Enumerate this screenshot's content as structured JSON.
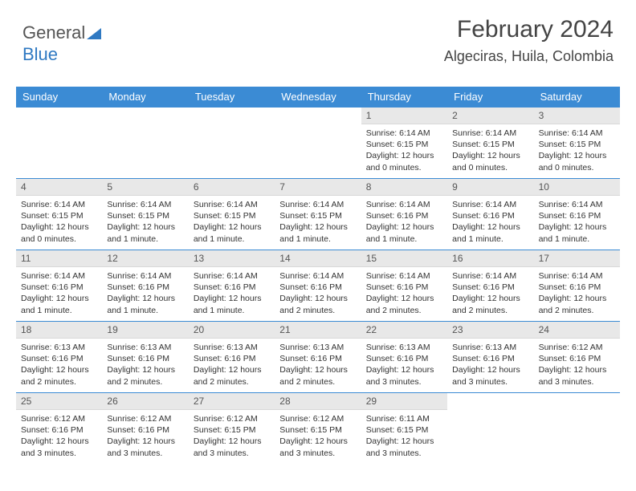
{
  "logo": {
    "part1": "General",
    "part2": "Blue"
  },
  "header": {
    "title": "February 2024",
    "location": "Algeciras, Huila, Colombia"
  },
  "colors": {
    "header_bg": "#3b8bd4",
    "header_text": "#ffffff",
    "daynum_bg": "#e8e8e8",
    "rule": "#3b8bd4",
    "text": "#333333",
    "logo_gray": "#555555",
    "logo_blue": "#2f79c2",
    "page_bg": "#ffffff"
  },
  "typography": {
    "title_fontsize": 30,
    "location_fontsize": 18,
    "dow_fontsize": 13,
    "daynum_fontsize": 12,
    "detail_fontsize": 10.5
  },
  "days_of_week": [
    "Sunday",
    "Monday",
    "Tuesday",
    "Wednesday",
    "Thursday",
    "Friday",
    "Saturday"
  ],
  "labels": {
    "sunrise": "Sunrise:",
    "sunset": "Sunset:",
    "daylight": "Daylight:"
  },
  "weeks": [
    [
      null,
      null,
      null,
      null,
      {
        "n": "1",
        "sr": "6:14 AM",
        "ss": "6:15 PM",
        "dl": "12 hours and 0 minutes."
      },
      {
        "n": "2",
        "sr": "6:14 AM",
        "ss": "6:15 PM",
        "dl": "12 hours and 0 minutes."
      },
      {
        "n": "3",
        "sr": "6:14 AM",
        "ss": "6:15 PM",
        "dl": "12 hours and 0 minutes."
      }
    ],
    [
      {
        "n": "4",
        "sr": "6:14 AM",
        "ss": "6:15 PM",
        "dl": "12 hours and 0 minutes."
      },
      {
        "n": "5",
        "sr": "6:14 AM",
        "ss": "6:15 PM",
        "dl": "12 hours and 1 minute."
      },
      {
        "n": "6",
        "sr": "6:14 AM",
        "ss": "6:15 PM",
        "dl": "12 hours and 1 minute."
      },
      {
        "n": "7",
        "sr": "6:14 AM",
        "ss": "6:15 PM",
        "dl": "12 hours and 1 minute."
      },
      {
        "n": "8",
        "sr": "6:14 AM",
        "ss": "6:16 PM",
        "dl": "12 hours and 1 minute."
      },
      {
        "n": "9",
        "sr": "6:14 AM",
        "ss": "6:16 PM",
        "dl": "12 hours and 1 minute."
      },
      {
        "n": "10",
        "sr": "6:14 AM",
        "ss": "6:16 PM",
        "dl": "12 hours and 1 minute."
      }
    ],
    [
      {
        "n": "11",
        "sr": "6:14 AM",
        "ss": "6:16 PM",
        "dl": "12 hours and 1 minute."
      },
      {
        "n": "12",
        "sr": "6:14 AM",
        "ss": "6:16 PM",
        "dl": "12 hours and 1 minute."
      },
      {
        "n": "13",
        "sr": "6:14 AM",
        "ss": "6:16 PM",
        "dl": "12 hours and 1 minute."
      },
      {
        "n": "14",
        "sr": "6:14 AM",
        "ss": "6:16 PM",
        "dl": "12 hours and 2 minutes."
      },
      {
        "n": "15",
        "sr": "6:14 AM",
        "ss": "6:16 PM",
        "dl": "12 hours and 2 minutes."
      },
      {
        "n": "16",
        "sr": "6:14 AM",
        "ss": "6:16 PM",
        "dl": "12 hours and 2 minutes."
      },
      {
        "n": "17",
        "sr": "6:14 AM",
        "ss": "6:16 PM",
        "dl": "12 hours and 2 minutes."
      }
    ],
    [
      {
        "n": "18",
        "sr": "6:13 AM",
        "ss": "6:16 PM",
        "dl": "12 hours and 2 minutes."
      },
      {
        "n": "19",
        "sr": "6:13 AM",
        "ss": "6:16 PM",
        "dl": "12 hours and 2 minutes."
      },
      {
        "n": "20",
        "sr": "6:13 AM",
        "ss": "6:16 PM",
        "dl": "12 hours and 2 minutes."
      },
      {
        "n": "21",
        "sr": "6:13 AM",
        "ss": "6:16 PM",
        "dl": "12 hours and 2 minutes."
      },
      {
        "n": "22",
        "sr": "6:13 AM",
        "ss": "6:16 PM",
        "dl": "12 hours and 3 minutes."
      },
      {
        "n": "23",
        "sr": "6:13 AM",
        "ss": "6:16 PM",
        "dl": "12 hours and 3 minutes."
      },
      {
        "n": "24",
        "sr": "6:12 AM",
        "ss": "6:16 PM",
        "dl": "12 hours and 3 minutes."
      }
    ],
    [
      {
        "n": "25",
        "sr": "6:12 AM",
        "ss": "6:16 PM",
        "dl": "12 hours and 3 minutes."
      },
      {
        "n": "26",
        "sr": "6:12 AM",
        "ss": "6:16 PM",
        "dl": "12 hours and 3 minutes."
      },
      {
        "n": "27",
        "sr": "6:12 AM",
        "ss": "6:15 PM",
        "dl": "12 hours and 3 minutes."
      },
      {
        "n": "28",
        "sr": "6:12 AM",
        "ss": "6:15 PM",
        "dl": "12 hours and 3 minutes."
      },
      {
        "n": "29",
        "sr": "6:11 AM",
        "ss": "6:15 PM",
        "dl": "12 hours and 3 minutes."
      },
      null,
      null
    ]
  ]
}
